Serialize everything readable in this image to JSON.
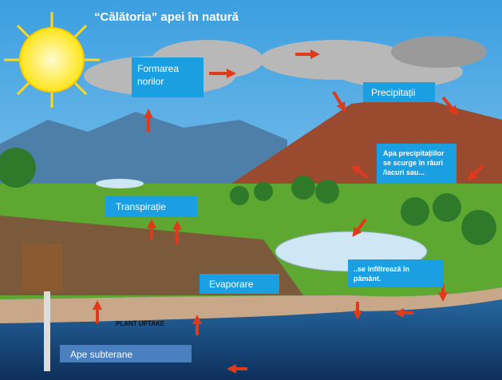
{
  "header": {
    "title": "“Călătoria” apei în natură"
  },
  "labels": {
    "cloud_formation": [
      "Formarea",
      "norilor"
    ],
    "precipitation": [
      "Precipitații"
    ],
    "runoff": [
      "Apa precipitațiilor",
      "se scurge în râuri",
      "/lacuri sau..."
    ],
    "transpiration": [
      "Transpirație"
    ],
    "evaporation": [
      "Evaporare"
    ],
    "infiltration": [
      "..se infiltrează în",
      "pământ."
    ],
    "groundwater": [
      "Ape subterane"
    ],
    "plant_uptake": [
      "PLANT UPTAKE"
    ]
  }
}
